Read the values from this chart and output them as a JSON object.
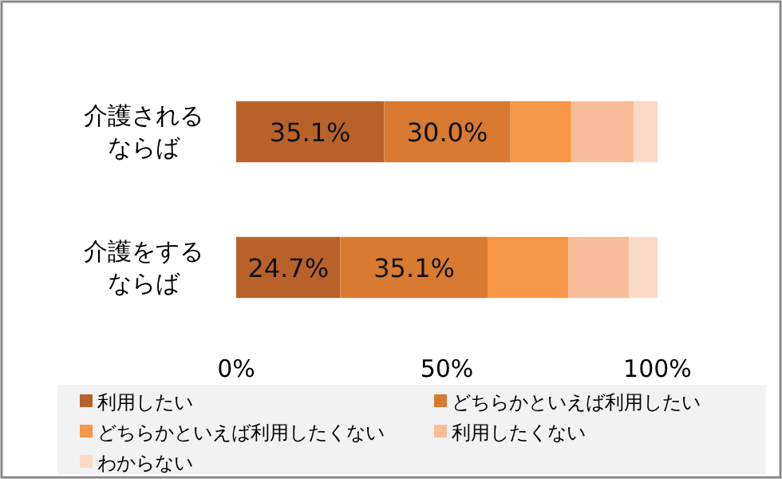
{
  "chart_data": {
    "type": "bar",
    "orientation": "horizontal",
    "stacked": true,
    "categories": [
      "介護されるならば",
      "介護をするならば"
    ],
    "series": [
      {
        "name": "利用したい",
        "color": "#b8622a",
        "values": [
          35.1,
          24.7
        ],
        "value_labels": [
          "35.1%",
          "24.7%"
        ]
      },
      {
        "name": "どちらかといえば利用したい",
        "color": "#d87a32",
        "values": [
          30.0,
          35.1
        ],
        "value_labels": [
          "30.0%",
          "35.1%"
        ]
      },
      {
        "name": "どちらかといえば利用したくない",
        "color": "#f79646",
        "values": [
          14.4,
          19.0
        ]
      },
      {
        "name": "利用したくない",
        "color": "#f9bc98",
        "values": [
          14.8,
          14.4
        ]
      },
      {
        "name": "わからない",
        "color": "#fcd9c6",
        "values": [
          5.7,
          6.8
        ]
      }
    ],
    "xlim": [
      0,
      100
    ],
    "xticks": [
      {
        "value": 0,
        "label": "0%"
      },
      {
        "value": 50,
        "label": "50%"
      },
      {
        "value": 100,
        "label": "100%"
      }
    ],
    "legend": "bottom"
  }
}
